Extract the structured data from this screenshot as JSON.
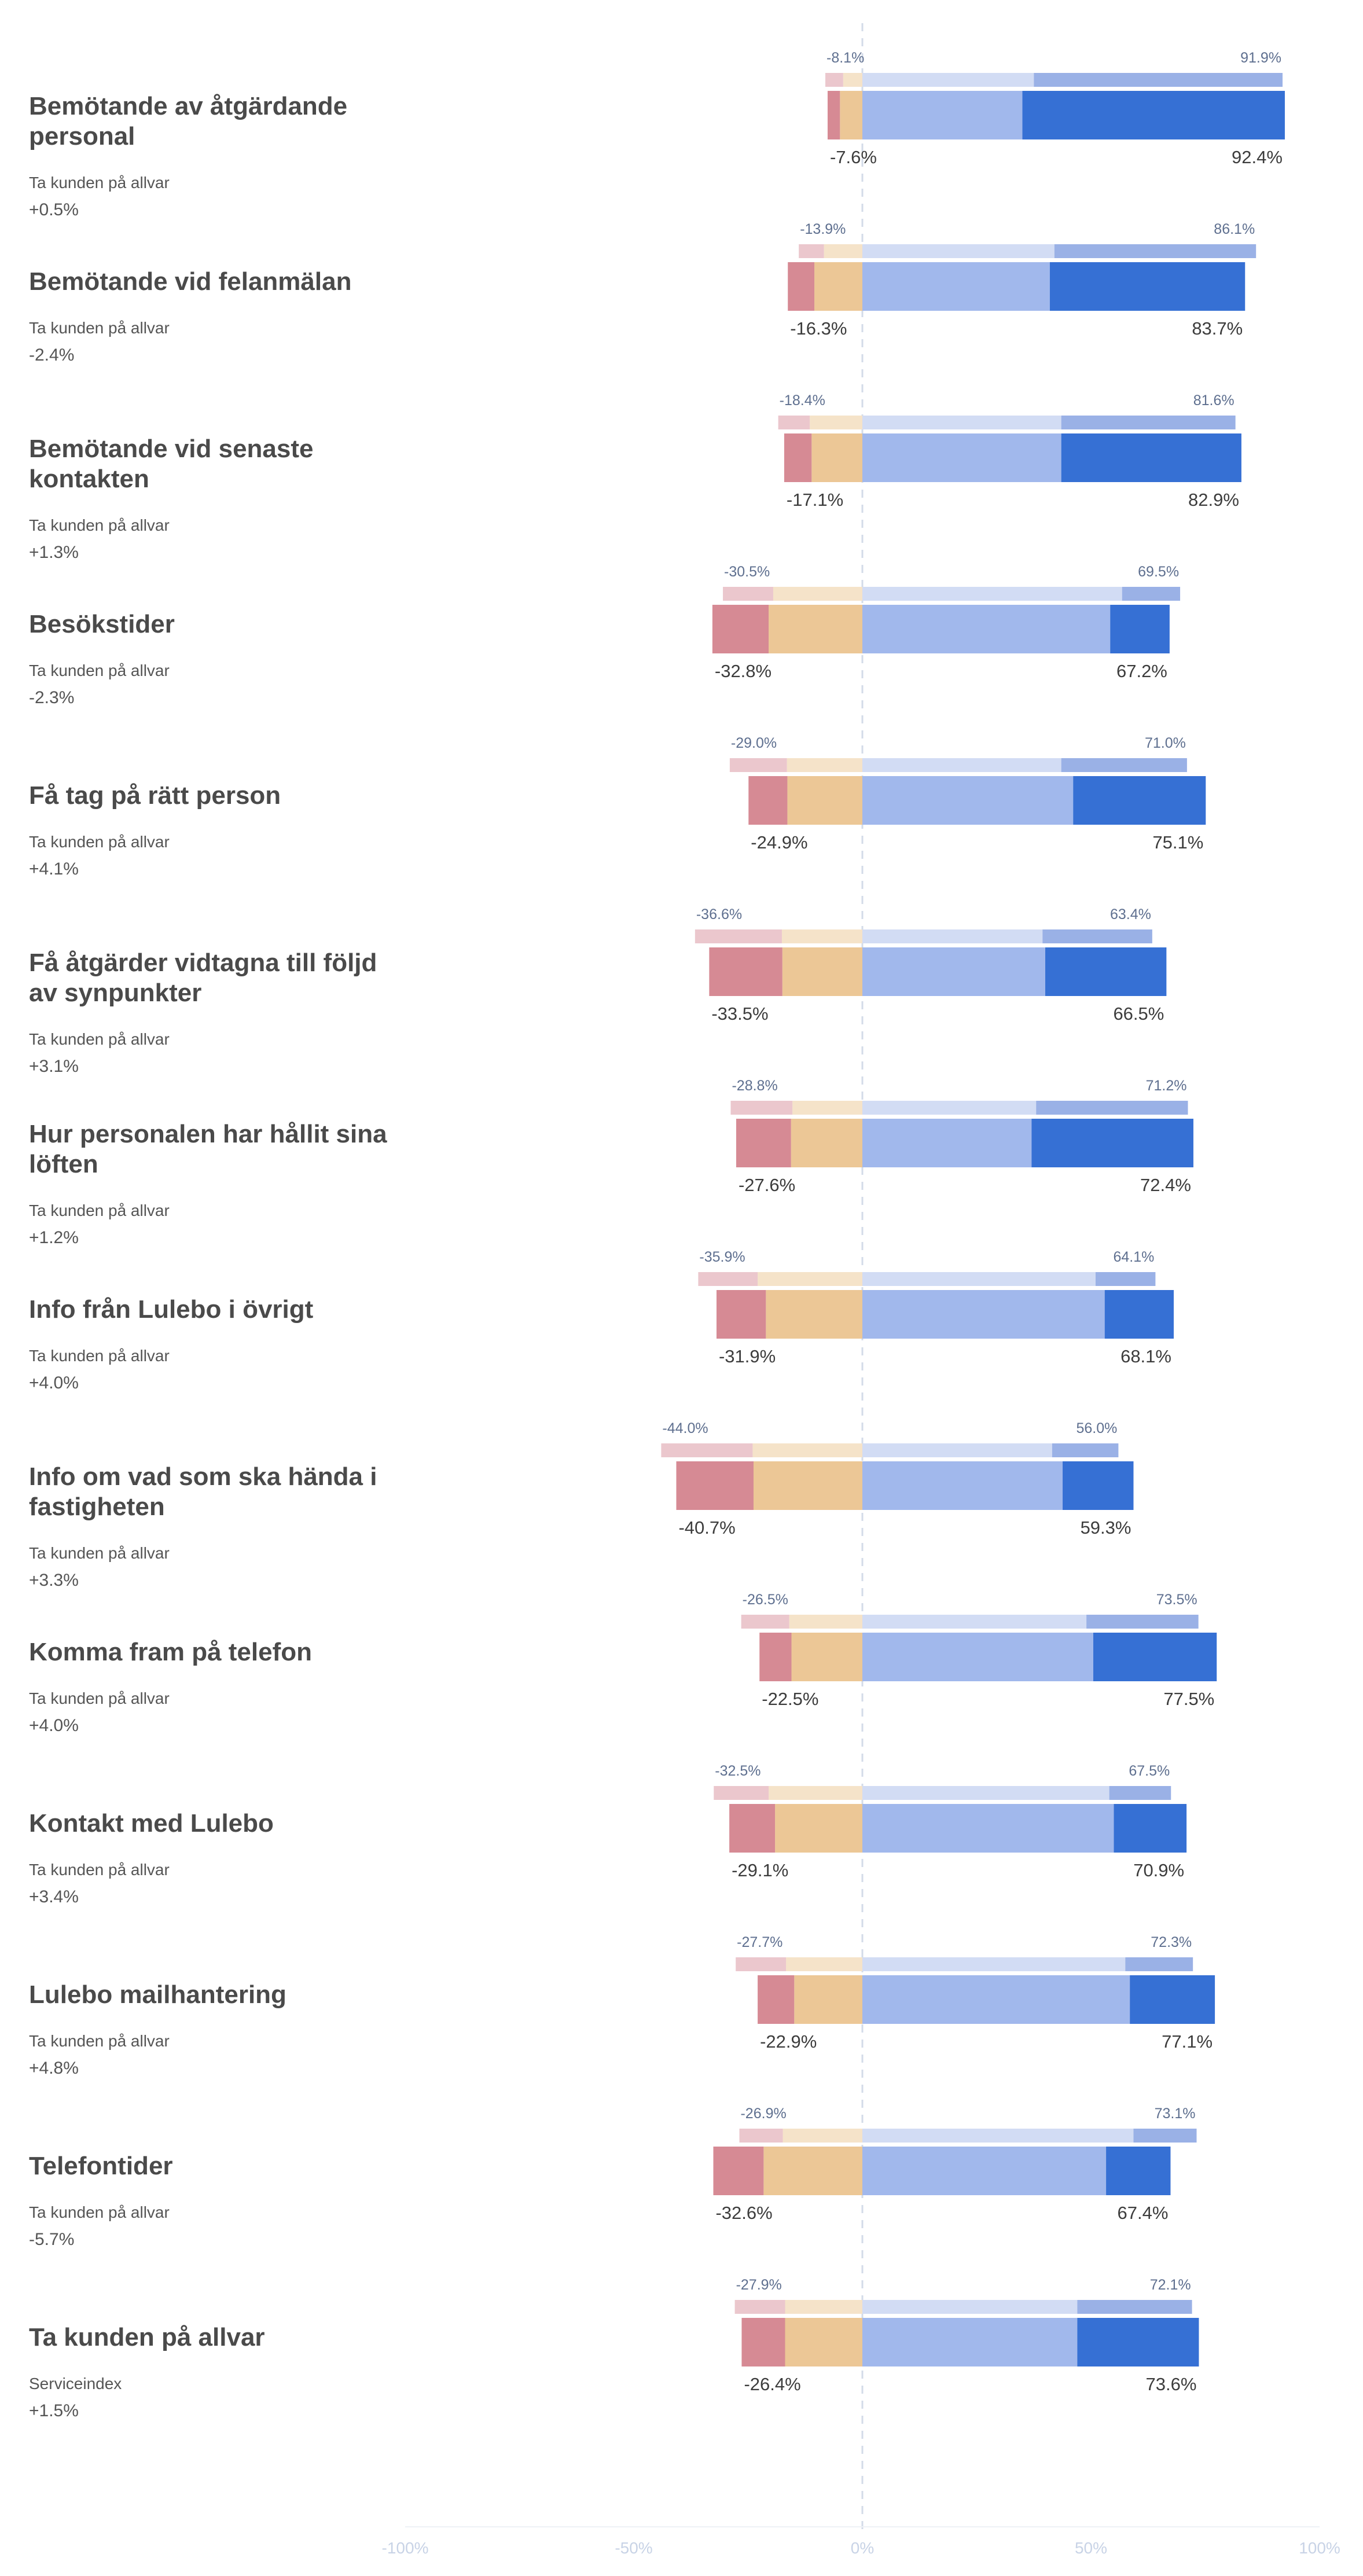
{
  "chart_data": {
    "type": "bar",
    "subtype": "diverging-stacked",
    "colors": {
      "neg_strong": "#d68a94",
      "neg_mild": "#ecc796",
      "pos_mild": "#a1b8ec",
      "pos_strong": "#3670d4",
      "prev_neg_strong": "#ebc7cd",
      "prev_neg_mild": "#f5e3c9",
      "prev_pos_mild": "#d2dcf4",
      "prev_pos_strong": "#9ab1e6",
      "axis_line": "#cfd6e4",
      "tick_text": "#c8d3e6"
    },
    "x_axis": {
      "range": [
        -100,
        100
      ],
      "ticks": [
        -100,
        -50,
        0,
        50,
        100
      ],
      "tick_labels": [
        "-100%",
        "-50%",
        "0%",
        "50%",
        "100%"
      ]
    },
    "rows": [
      {
        "title_lines": [
          "Bemötande av åtgärdande",
          "personal"
        ],
        "subtitle": "Ta kunden på allvar",
        "delta": "+0.5%",
        "current": {
          "neg_strong": -2.7,
          "neg_mild": -4.9,
          "pos_mild": 35.0,
          "pos_strong": 57.4
        },
        "previous": {
          "neg_strong": -3.9,
          "neg_mild": -4.2,
          "pos_mild": 37.5,
          "pos_strong": 54.4
        },
        "current_labels": [
          "-7.6%",
          "92.4%"
        ],
        "previous_labels": [
          "-8.1%",
          "91.9%"
        ]
      },
      {
        "title_lines": [
          "Bemötande vid felanmälan"
        ],
        "subtitle": "Ta kunden på allvar",
        "delta": "-2.4%",
        "current": {
          "neg_strong": -5.8,
          "neg_mild": -10.5,
          "pos_mild": 41.0,
          "pos_strong": 42.7
        },
        "previous": {
          "neg_strong": -5.5,
          "neg_mild": -8.4,
          "pos_mild": 42.0,
          "pos_strong": 44.1
        },
        "current_labels": [
          "-16.3%",
          "83.7%"
        ],
        "previous_labels": [
          "-13.9%",
          "86.1%"
        ]
      },
      {
        "title_lines": [
          "Bemötande vid senaste",
          "kontakten"
        ],
        "subtitle": "Ta kunden på allvar",
        "delta": "+1.3%",
        "current": {
          "neg_strong": -6.0,
          "neg_mild": -11.1,
          "pos_mild": 43.5,
          "pos_strong": 39.4
        },
        "previous": {
          "neg_strong": -6.9,
          "neg_mild": -11.5,
          "pos_mild": 43.5,
          "pos_strong": 38.1
        },
        "current_labels": [
          "-17.1%",
          "82.9%"
        ],
        "previous_labels": [
          "-18.4%",
          "81.6%"
        ]
      },
      {
        "title_lines": [
          "Besökstider"
        ],
        "subtitle": "Ta kunden på allvar",
        "delta": "-2.3%",
        "current": {
          "neg_strong": -12.3,
          "neg_mild": -20.5,
          "pos_mild": 54.2,
          "pos_strong": 13.0
        },
        "previous": {
          "neg_strong": -11.0,
          "neg_mild": -19.5,
          "pos_mild": 56.8,
          "pos_strong": 12.7
        },
        "current_labels": [
          "-32.8%",
          "67.2%"
        ],
        "previous_labels": [
          "-30.5%",
          "69.5%"
        ]
      },
      {
        "title_lines": [
          "Få tag på rätt person"
        ],
        "subtitle": "Ta kunden på allvar",
        "delta": "+4.1%",
        "current": {
          "neg_strong": -8.5,
          "neg_mild": -16.4,
          "pos_mild": 46.1,
          "pos_strong": 29.0
        },
        "previous": {
          "neg_strong": -12.5,
          "neg_mild": -16.5,
          "pos_mild": 43.5,
          "pos_strong": 27.5
        },
        "current_labels": [
          "-24.9%",
          "75.1%"
        ],
        "previous_labels": [
          "-29.0%",
          "71.0%"
        ]
      },
      {
        "title_lines": [
          "Få åtgärder vidtagna till följd",
          "av synpunkter"
        ],
        "subtitle": "Ta kunden på allvar",
        "delta": "+3.1%",
        "current": {
          "neg_strong": -16.0,
          "neg_mild": -17.5,
          "pos_mild": 40.0,
          "pos_strong": 26.5
        },
        "previous": {
          "neg_strong": -19.0,
          "neg_mild": -17.6,
          "pos_mild": 39.4,
          "pos_strong": 24.0
        },
        "current_labels": [
          "-33.5%",
          "66.5%"
        ],
        "previous_labels": [
          "-36.6%",
          "63.4%"
        ]
      },
      {
        "title_lines": [
          "Hur personalen har hållit sina",
          "löften"
        ],
        "subtitle": "Ta kunden på allvar",
        "delta": "+1.2%",
        "current": {
          "neg_strong": -12.0,
          "neg_mild": -15.6,
          "pos_mild": 37.0,
          "pos_strong": 35.4
        },
        "previous": {
          "neg_strong": -13.5,
          "neg_mild": -15.3,
          "pos_mild": 38.0,
          "pos_strong": 33.2
        },
        "current_labels": [
          "-27.6%",
          "72.4%"
        ],
        "previous_labels": [
          "-28.8%",
          "71.2%"
        ]
      },
      {
        "title_lines": [
          "Info från Lulebo i övrigt"
        ],
        "subtitle": "Ta kunden på allvar",
        "delta": "+4.0%",
        "current": {
          "neg_strong": -10.8,
          "neg_mild": -21.1,
          "pos_mild": 53.0,
          "pos_strong": 15.1
        },
        "previous": {
          "neg_strong": -13.0,
          "neg_mild": -22.9,
          "pos_mild": 51.0,
          "pos_strong": 13.1
        },
        "current_labels": [
          "-31.9%",
          "68.1%"
        ],
        "previous_labels": [
          "-35.9%",
          "64.1%"
        ]
      },
      {
        "title_lines": [
          "Info om vad som ska hända i",
          "fastigheten"
        ],
        "subtitle": "Ta kunden på allvar",
        "delta": "+3.3%",
        "current": {
          "neg_strong": -16.9,
          "neg_mild": -23.8,
          "pos_mild": 43.8,
          "pos_strong": 15.5
        },
        "previous": {
          "neg_strong": -20.0,
          "neg_mild": -24.0,
          "pos_mild": 41.5,
          "pos_strong": 14.5
        },
        "current_labels": [
          "-40.7%",
          "59.3%"
        ],
        "previous_labels": [
          "-44.0%",
          "56.0%"
        ]
      },
      {
        "title_lines": [
          "Komma fram på telefon"
        ],
        "subtitle": "Ta kunden på allvar",
        "delta": "+4.0%",
        "current": {
          "neg_strong": -7.0,
          "neg_mild": -15.5,
          "pos_mild": 50.5,
          "pos_strong": 27.0
        },
        "previous": {
          "neg_strong": -10.5,
          "neg_mild": -16.0,
          "pos_mild": 49.0,
          "pos_strong": 24.5
        },
        "current_labels": [
          "-22.5%",
          "77.5%"
        ],
        "previous_labels": [
          "-26.5%",
          "73.5%"
        ]
      },
      {
        "title_lines": [
          "Kontakt med Lulebo"
        ],
        "subtitle": "Ta kunden på allvar",
        "delta": "+3.4%",
        "current": {
          "neg_strong": -10.0,
          "neg_mild": -19.1,
          "pos_mild": 55.0,
          "pos_strong": 15.9
        },
        "previous": {
          "neg_strong": -12.0,
          "neg_mild": -20.5,
          "pos_mild": 54.0,
          "pos_strong": 13.5
        },
        "current_labels": [
          "-29.1%",
          "70.9%"
        ],
        "previous_labels": [
          "-32.5%",
          "67.5%"
        ]
      },
      {
        "title_lines": [
          "Lulebo mailhantering"
        ],
        "subtitle": "Ta kunden på allvar",
        "delta": "+4.8%",
        "current": {
          "neg_strong": -8.0,
          "neg_mild": -14.9,
          "pos_mild": 58.5,
          "pos_strong": 18.6
        },
        "previous": {
          "neg_strong": -11.0,
          "neg_mild": -16.7,
          "pos_mild": 57.5,
          "pos_strong": 14.8
        },
        "current_labels": [
          "-22.9%",
          "77.1%"
        ],
        "previous_labels": [
          "-27.7%",
          "72.3%"
        ]
      },
      {
        "title_lines": [
          "Telefontider"
        ],
        "subtitle": "Ta kunden på allvar",
        "delta": "-5.7%",
        "current": {
          "neg_strong": -11.0,
          "neg_mild": -21.6,
          "pos_mild": 53.3,
          "pos_strong": 14.1
        },
        "previous": {
          "neg_strong": -9.5,
          "neg_mild": -17.4,
          "pos_mild": 59.3,
          "pos_strong": 13.8
        },
        "current_labels": [
          "-32.6%",
          "67.4%"
        ],
        "previous_labels": [
          "-26.9%",
          "73.1%"
        ]
      },
      {
        "title_lines": [
          "Ta kunden på allvar"
        ],
        "subtitle": "Serviceindex",
        "delta": "+1.5%",
        "current": {
          "neg_strong": -9.5,
          "neg_mild": -16.9,
          "pos_mild": 47.0,
          "pos_strong": 26.6
        },
        "previous": {
          "neg_strong": -11.0,
          "neg_mild": -16.9,
          "pos_mild": 47.0,
          "pos_strong": 25.1
        },
        "current_labels": [
          "-26.4%",
          "73.6%"
        ],
        "previous_labels": [
          "-27.9%",
          "72.1%"
        ]
      }
    ]
  }
}
